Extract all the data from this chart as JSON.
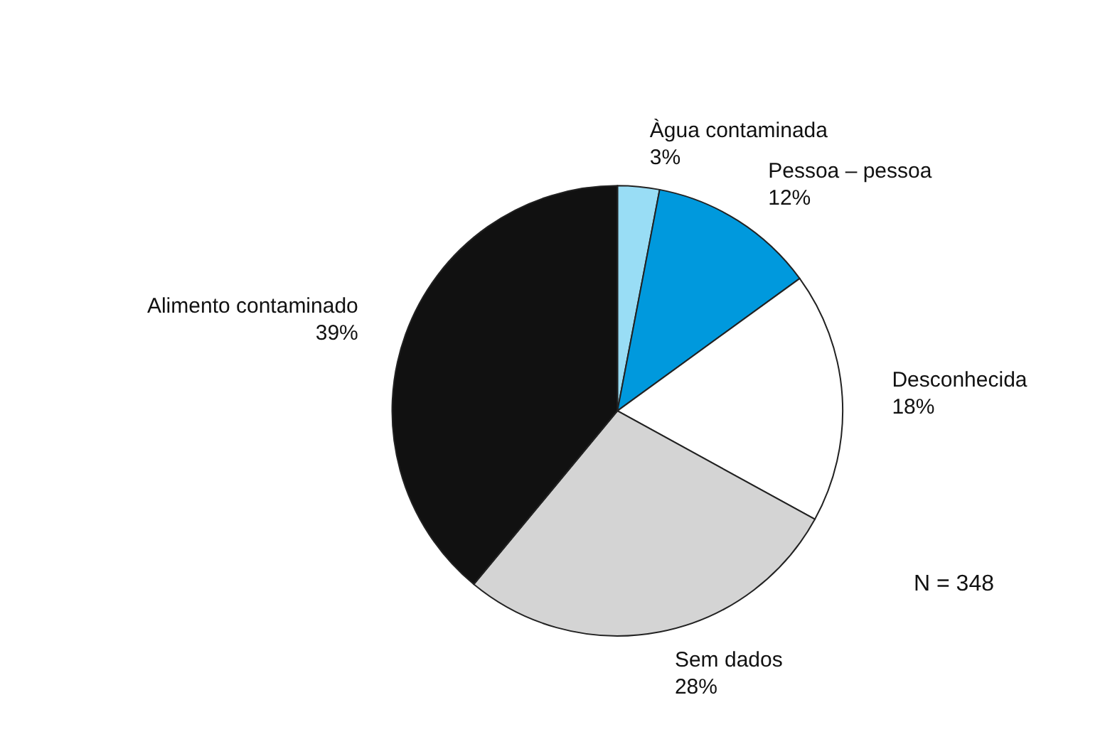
{
  "chart_data": {
    "type": "pie",
    "categories": [
      "Àgua contaminada",
      "Pessoa – pessoa",
      "Desconhecida",
      "Sem dados",
      "Alimento contaminado"
    ],
    "values": [
      3,
      12,
      18,
      28,
      39
    ],
    "colors": [
      "#99ddf5",
      "#0099dd",
      "#ffffff",
      "#d4d4d4",
      "#111111"
    ],
    "value_labels": [
      "3%",
      "12%",
      "18%",
      "28%",
      "39%"
    ],
    "annotations": [
      "N = 348"
    ]
  }
}
